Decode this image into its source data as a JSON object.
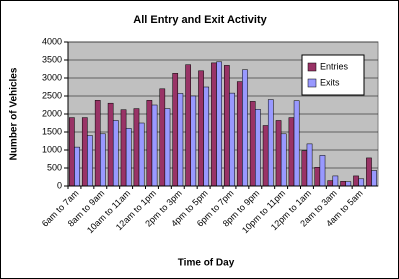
{
  "chart_data": {
    "type": "bar",
    "title": "All Entry and Exit Activity",
    "x_label": "Time of Day",
    "y_label": "Number of Vehicles",
    "categories": [
      "6am to 7am",
      null,
      "8am to 9am",
      null,
      "10am to 11am",
      null,
      "12am to 1pm",
      null,
      "2pm to 3pm",
      null,
      "4pm to 5pm",
      null,
      "6pm to 7pm",
      null,
      "8pm to 9pm",
      null,
      "10pm to 11pm",
      null,
      "12pm to 1am",
      null,
      "2am to 3am",
      null,
      "4am to 5am",
      null
    ],
    "series": [
      {
        "name": "Entries",
        "color": "#993366",
        "values": [
          1900,
          1900,
          2380,
          2300,
          2120,
          2150,
          2380,
          2700,
          3130,
          3370,
          3200,
          3420,
          3350,
          2900,
          2350,
          1680,
          1820,
          1900,
          980,
          520,
          150,
          130,
          280,
          780
        ]
      },
      {
        "name": "Exits",
        "color": "#9999ff",
        "values": [
          1080,
          1400,
          1450,
          1820,
          1600,
          1750,
          2250,
          2150,
          2570,
          2500,
          2750,
          3450,
          2580,
          3230,
          2130,
          2400,
          1450,
          2370,
          1170,
          850,
          280,
          120,
          200,
          430
        ]
      }
    ],
    "ylim": [
      0,
      4000
    ],
    "yticks": [
      0,
      500,
      1000,
      1500,
      2000,
      2500,
      3000,
      3500,
      4000
    ],
    "grid": true,
    "legend": "right",
    "plot_background": "#c0c0c0"
  }
}
